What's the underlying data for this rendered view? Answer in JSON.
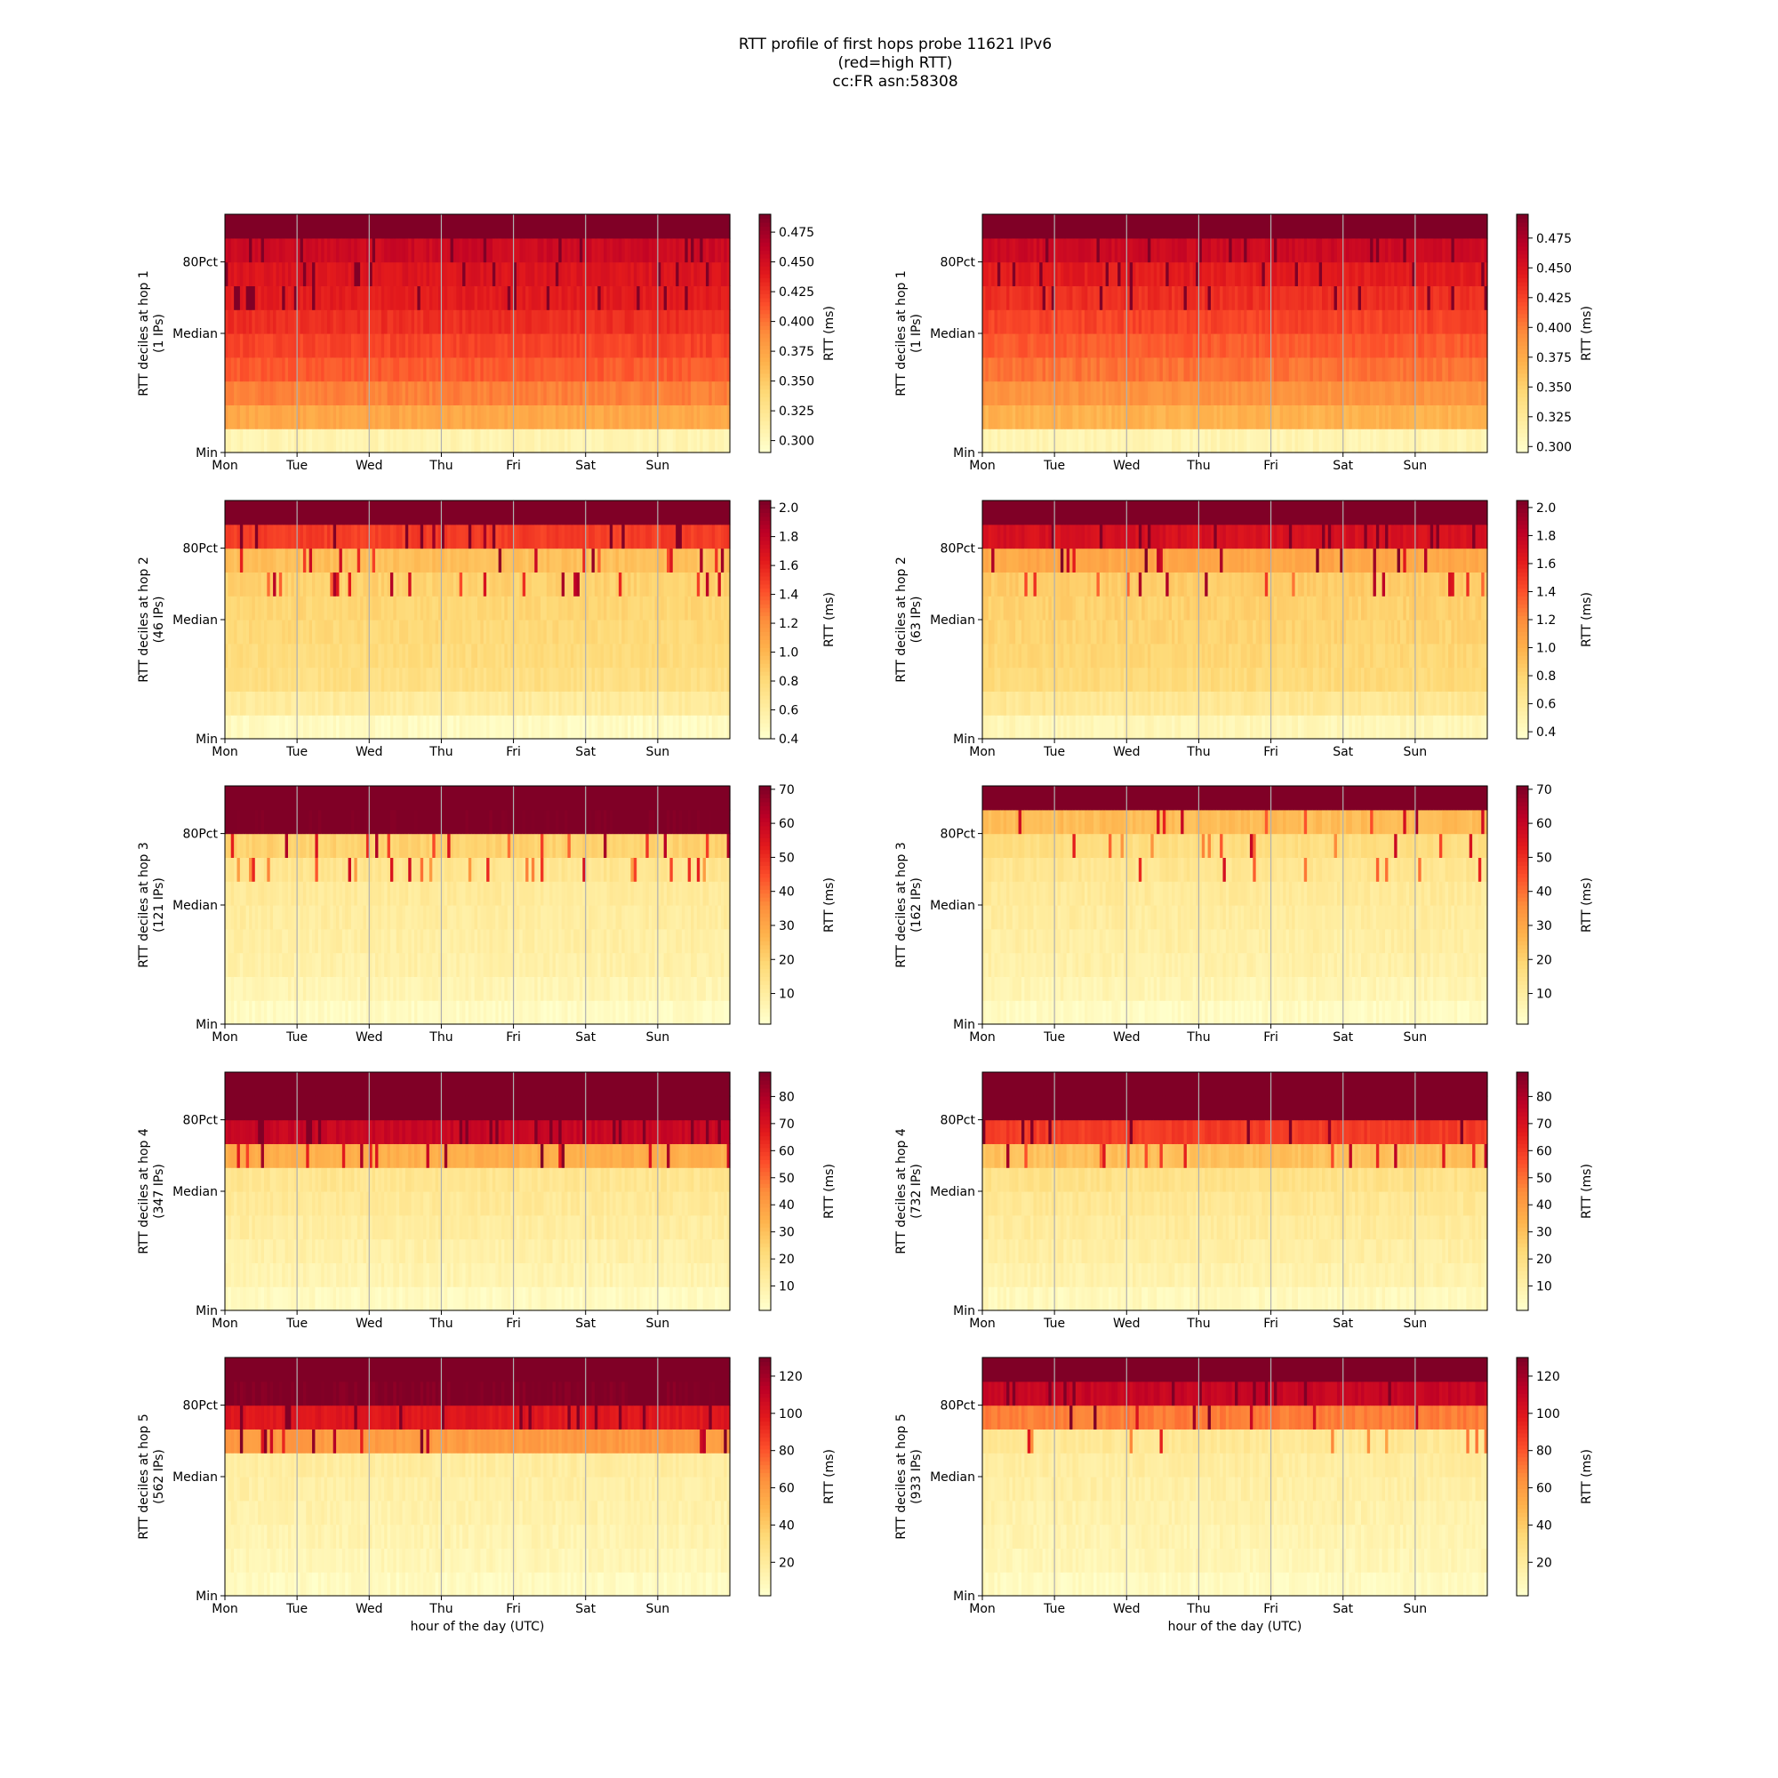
{
  "figure": {
    "title_lines": [
      "RTT profile of first hops probe 11621 IPv6",
      "(red=high RTT)",
      "cc:FR asn:58308"
    ],
    "xlabel": "hour of the day (UTC)",
    "colorbar_label": "RTT (ms)",
    "days": [
      "Mon",
      "Tue",
      "Wed",
      "Thu",
      "Fri",
      "Sat",
      "Sun"
    ],
    "y_ticks": [
      "Min",
      "Median",
      "80Pct"
    ],
    "colormap": [
      "#ffffcc",
      "#ffeda0",
      "#fed976",
      "#feb24c",
      "#fd8d3c",
      "#fc4e2a",
      "#e31a1c",
      "#bd0026",
      "#800026"
    ]
  },
  "chart_data": [
    {
      "type": "heatmap",
      "column": "left",
      "hop": 1,
      "ylabel": "RTT deciles at hop 1",
      "ips_label": "(1 IPs)",
      "vmin": 0.29,
      "vmax": 0.49,
      "cbar_ticks": [
        "0.300",
        "0.325",
        "0.350",
        "0.375",
        "0.400",
        "0.425",
        "0.450",
        "0.475"
      ],
      "decile_rtt": [
        0.305,
        0.372,
        0.395,
        0.41,
        0.42,
        0.43,
        0.44,
        0.445,
        0.455,
        0.495
      ]
    },
    {
      "type": "heatmap",
      "column": "right",
      "hop": 1,
      "ylabel": "RTT deciles at hop 1",
      "ips_label": "(1 IPs)",
      "vmin": 0.295,
      "vmax": 0.495,
      "cbar_ticks": [
        "0.300",
        "0.325",
        "0.350",
        "0.375",
        "0.400",
        "0.425",
        "0.450",
        "0.475"
      ],
      "decile_rtt": [
        0.31,
        0.37,
        0.39,
        0.405,
        0.415,
        0.425,
        0.435,
        0.445,
        0.46,
        0.5
      ]
    },
    {
      "type": "heatmap",
      "column": "left",
      "hop": 2,
      "ylabel": "RTT deciles at hop 2",
      "ips_label": "(46 IPs)",
      "vmin": 0.4,
      "vmax": 2.05,
      "cbar_ticks": [
        "0.4",
        "0.6",
        "0.8",
        "1.0",
        "1.2",
        "1.4",
        "1.6",
        "1.8",
        "2.0"
      ],
      "decile_rtt": [
        0.45,
        0.62,
        0.75,
        0.78,
        0.8,
        0.82,
        0.85,
        0.95,
        1.5,
        2.1
      ]
    },
    {
      "type": "heatmap",
      "column": "right",
      "hop": 2,
      "ylabel": "RTT deciles at hop 2",
      "ips_label": "(63 IPs)",
      "vmin": 0.35,
      "vmax": 2.05,
      "cbar_ticks": [
        "0.4",
        "0.6",
        "0.8",
        "1.0",
        "1.2",
        "1.4",
        "1.6",
        "1.8",
        "2.0"
      ],
      "decile_rtt": [
        0.45,
        0.62,
        0.75,
        0.78,
        0.8,
        0.82,
        0.85,
        1.05,
        1.7,
        2.1
      ]
    },
    {
      "type": "heatmap",
      "column": "left",
      "hop": 3,
      "ylabel": "RTT deciles at hop 3",
      "ips_label": "(121 IPs)",
      "vmin": 1,
      "vmax": 71,
      "cbar_ticks": [
        "10",
        "20",
        "30",
        "40",
        "50",
        "60",
        "70"
      ],
      "decile_rtt": [
        3,
        6,
        8,
        9,
        10,
        11,
        13,
        20,
        72,
        72
      ]
    },
    {
      "type": "heatmap",
      "column": "right",
      "hop": 3,
      "ylabel": "RTT deciles at hop 3",
      "ips_label": "(162 IPs)",
      "vmin": 1,
      "vmax": 71,
      "cbar_ticks": [
        "10",
        "20",
        "30",
        "40",
        "50",
        "60",
        "70"
      ],
      "decile_rtt": [
        3,
        6,
        8,
        9,
        10,
        11,
        13,
        16,
        25,
        72
      ]
    },
    {
      "type": "heatmap",
      "column": "left",
      "hop": 4,
      "ylabel": "RTT deciles at hop 4",
      "ips_label": "(347 IPs)",
      "vmin": 1,
      "vmax": 89,
      "cbar_ticks": [
        "10",
        "20",
        "30",
        "40",
        "50",
        "60",
        "70",
        "80"
      ],
      "decile_rtt": [
        4,
        8,
        10,
        12,
        14,
        16,
        35,
        75,
        92,
        92
      ]
    },
    {
      "type": "heatmap",
      "column": "right",
      "hop": 4,
      "ylabel": "RTT deciles at hop 4",
      "ips_label": "(732 IPs)",
      "vmin": 1,
      "vmax": 89,
      "cbar_ticks": [
        "10",
        "20",
        "30",
        "40",
        "50",
        "60",
        "70",
        "80"
      ],
      "decile_rtt": [
        5,
        9,
        11,
        13,
        15,
        18,
        30,
        60,
        92,
        92
      ]
    },
    {
      "type": "heatmap",
      "column": "left",
      "hop": 5,
      "ylabel": "RTT deciles at hop 5",
      "ips_label": "(562 IPs)",
      "vmin": 2,
      "vmax": 130,
      "cbar_ticks": [
        "20",
        "40",
        "60",
        "80",
        "100",
        "120"
      ],
      "decile_rtt": [
        6,
        10,
        12,
        14,
        16,
        18,
        60,
        100,
        130,
        135
      ]
    },
    {
      "type": "heatmap",
      "column": "right",
      "hop": 5,
      "ylabel": "RTT deciles at hop 5",
      "ips_label": "(933 IPs)",
      "vmin": 2,
      "vmax": 130,
      "cbar_ticks": [
        "20",
        "40",
        "60",
        "80",
        "100",
        "120"
      ],
      "decile_rtt": [
        6,
        10,
        12,
        14,
        16,
        18,
        22,
        70,
        110,
        135
      ]
    }
  ]
}
